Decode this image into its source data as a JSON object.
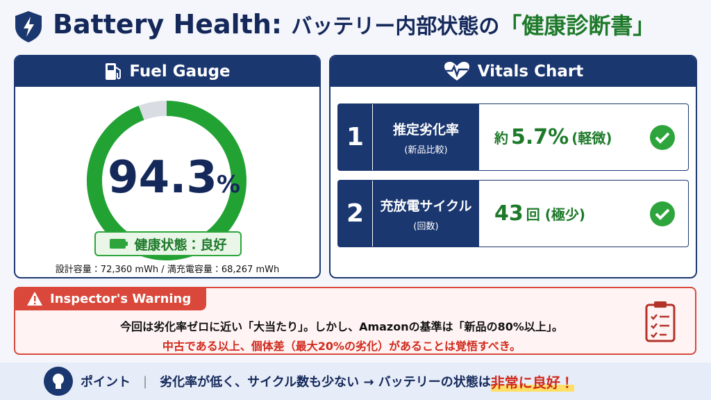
{
  "header": {
    "title_en": "Battery Health:",
    "title_jp": "バッテリー内部状態の",
    "title_highlight": "「健康診断書」"
  },
  "fuel_gauge": {
    "title": "Fuel Gauge",
    "value": 94.3,
    "unit": "%",
    "range": [
      0,
      100
    ],
    "status": "健康状態：良好",
    "capacity_note": "設計容量：72,360 mWh / 満充電容量：68,267 mWh"
  },
  "vitals": {
    "title": "Vitals Chart",
    "rows": [
      {
        "number": "1",
        "label": "推定劣化率",
        "sublabel": "(新品比較)",
        "prefix": "約",
        "value": "5.7%",
        "note": "(軽微)"
      },
      {
        "number": "2",
        "label": "充放電サイクル",
        "sublabel": "(回数)",
        "prefix": "",
        "value": "43",
        "note": "回 (極少)"
      }
    ]
  },
  "warning": {
    "title": "Inspector's Warning",
    "line1": "今回は劣化率ゼロに近い「大当たり」。しかし、Amazonの基準は「新品の80%以上」。",
    "line2": "中古である以上、個体差（最大20%の劣化）があることは覚悟すべき。"
  },
  "point": {
    "label": "ポイント",
    "text": "劣化率が低く、サイクル数も少ない → バッテリーの状態は",
    "highlight": "非常に良好！"
  }
}
